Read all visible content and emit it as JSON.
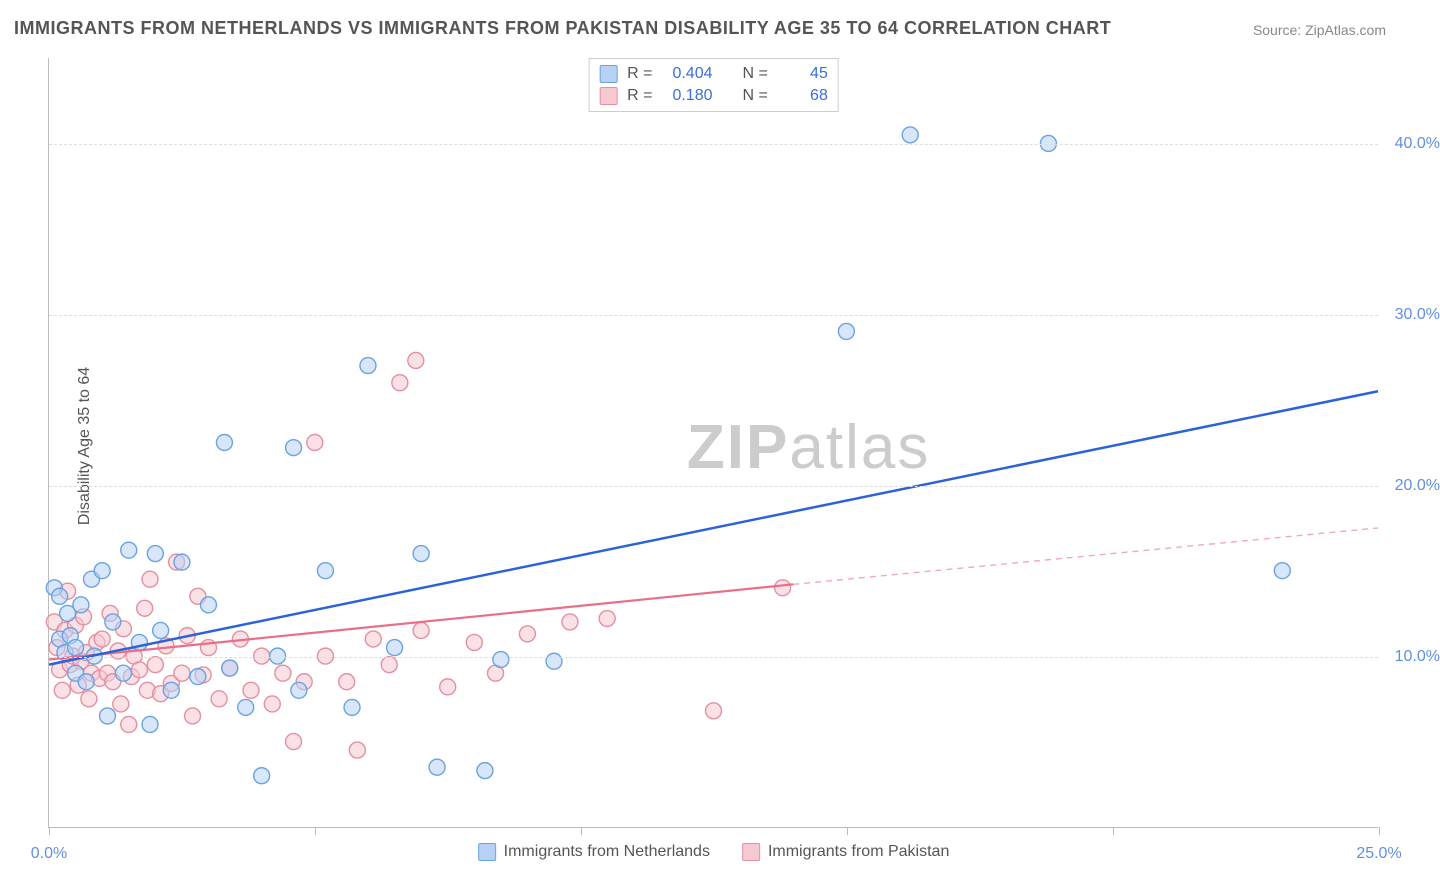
{
  "title": "IMMIGRANTS FROM NETHERLANDS VS IMMIGRANTS FROM PAKISTAN DISABILITY AGE 35 TO 64 CORRELATION CHART",
  "source": "Source: ZipAtlas.com",
  "y_axis_label": "Disability Age 35 to 64",
  "watermark_a": "ZIP",
  "watermark_b": "atlas",
  "chart": {
    "type": "scatter",
    "xlim": [
      0,
      25
    ],
    "ylim": [
      0,
      45
    ],
    "x_ticks": [
      0,
      5,
      10,
      15,
      20,
      25
    ],
    "x_tick_labels": {
      "0": "0.0%",
      "25": "25.0%"
    },
    "y_ticks": [
      10,
      20,
      30,
      40
    ],
    "y_tick_labels": [
      "10.0%",
      "20.0%",
      "30.0%",
      "40.0%"
    ],
    "grid_color": "#dddddd",
    "background_color": "#ffffff",
    "axis_color": "#bbbbbb",
    "tick_label_color": "#6090e0",
    "marker_radius": 8,
    "marker_stroke_width": 1.4,
    "series": [
      {
        "name": "Immigrants from Netherlands",
        "fill": "#b7d1f4",
        "stroke": "#6aa2e2",
        "fill_opacity": 0.55,
        "R": "0.404",
        "N": "45",
        "trend": {
          "x1": 0,
          "y1": 9.5,
          "x2": 25,
          "y2": 25.5,
          "stroke": "#2b62d9",
          "width": 2.5,
          "dash": null
        },
        "points": [
          [
            0.1,
            14.0
          ],
          [
            0.2,
            11.0
          ],
          [
            0.2,
            13.5
          ],
          [
            0.3,
            10.2
          ],
          [
            0.35,
            12.5
          ],
          [
            0.4,
            11.2
          ],
          [
            0.5,
            9.0
          ],
          [
            0.5,
            10.5
          ],
          [
            0.6,
            13.0
          ],
          [
            0.7,
            8.5
          ],
          [
            0.8,
            14.5
          ],
          [
            0.85,
            10.0
          ],
          [
            1.0,
            15.0
          ],
          [
            1.1,
            6.5
          ],
          [
            1.2,
            12.0
          ],
          [
            1.4,
            9.0
          ],
          [
            1.5,
            16.2
          ],
          [
            1.7,
            10.8
          ],
          [
            1.9,
            6.0
          ],
          [
            2.0,
            16.0
          ],
          [
            2.1,
            11.5
          ],
          [
            2.3,
            8.0
          ],
          [
            2.5,
            15.5
          ],
          [
            2.8,
            8.8
          ],
          [
            3.0,
            13.0
          ],
          [
            3.3,
            22.5
          ],
          [
            3.4,
            9.3
          ],
          [
            3.7,
            7.0
          ],
          [
            4.0,
            3.0
          ],
          [
            4.3,
            10.0
          ],
          [
            4.6,
            22.2
          ],
          [
            4.7,
            8.0
          ],
          [
            5.2,
            15.0
          ],
          [
            5.7,
            7.0
          ],
          [
            6.0,
            27.0
          ],
          [
            6.5,
            10.5
          ],
          [
            7.0,
            16.0
          ],
          [
            7.3,
            3.5
          ],
          [
            8.2,
            3.3
          ],
          [
            8.5,
            9.8
          ],
          [
            9.5,
            9.7
          ],
          [
            15.0,
            29.0
          ],
          [
            16.2,
            40.5
          ],
          [
            18.8,
            40.0
          ],
          [
            23.2,
            15.0
          ]
        ]
      },
      {
        "name": "Immigrants from Pakistan",
        "fill": "#f6c8d1",
        "stroke": "#e58fa0",
        "fill_opacity": 0.55,
        "R": "0.180",
        "N": "68",
        "trend": {
          "x1": 0,
          "y1": 9.8,
          "x2": 14,
          "y2": 14.2,
          "stroke": "#e86f89",
          "width": 2.2,
          "dash": null
        },
        "trend_extend": {
          "x1": 14,
          "y1": 14.2,
          "x2": 25,
          "y2": 17.5,
          "stroke": "#f2a9b7",
          "width": 1.4,
          "dash": "6 5"
        },
        "points": [
          [
            0.1,
            12.0
          ],
          [
            0.15,
            10.5
          ],
          [
            0.2,
            9.2
          ],
          [
            0.25,
            8.0
          ],
          [
            0.3,
            11.5
          ],
          [
            0.35,
            13.8
          ],
          [
            0.4,
            9.5
          ],
          [
            0.45,
            10.0
          ],
          [
            0.5,
            11.8
          ],
          [
            0.55,
            8.3
          ],
          [
            0.6,
            9.7
          ],
          [
            0.65,
            12.3
          ],
          [
            0.7,
            10.2
          ],
          [
            0.75,
            7.5
          ],
          [
            0.8,
            9.0
          ],
          [
            0.9,
            10.8
          ],
          [
            0.95,
            8.7
          ],
          [
            1.0,
            11.0
          ],
          [
            1.1,
            9.0
          ],
          [
            1.15,
            12.5
          ],
          [
            1.2,
            8.5
          ],
          [
            1.3,
            10.3
          ],
          [
            1.35,
            7.2
          ],
          [
            1.4,
            11.6
          ],
          [
            1.5,
            6.0
          ],
          [
            1.55,
            8.8
          ],
          [
            1.6,
            10.0
          ],
          [
            1.7,
            9.2
          ],
          [
            1.8,
            12.8
          ],
          [
            1.85,
            8.0
          ],
          [
            1.9,
            14.5
          ],
          [
            2.0,
            9.5
          ],
          [
            2.1,
            7.8
          ],
          [
            2.2,
            10.6
          ],
          [
            2.3,
            8.4
          ],
          [
            2.4,
            15.5
          ],
          [
            2.5,
            9.0
          ],
          [
            2.6,
            11.2
          ],
          [
            2.7,
            6.5
          ],
          [
            2.8,
            13.5
          ],
          [
            2.9,
            8.9
          ],
          [
            3.0,
            10.5
          ],
          [
            3.2,
            7.5
          ],
          [
            3.4,
            9.3
          ],
          [
            3.6,
            11.0
          ],
          [
            3.8,
            8.0
          ],
          [
            4.0,
            10.0
          ],
          [
            4.2,
            7.2
          ],
          [
            4.4,
            9.0
          ],
          [
            4.6,
            5.0
          ],
          [
            4.8,
            8.5
          ],
          [
            5.0,
            22.5
          ],
          [
            5.2,
            10.0
          ],
          [
            5.6,
            8.5
          ],
          [
            5.8,
            4.5
          ],
          [
            6.1,
            11.0
          ],
          [
            6.4,
            9.5
          ],
          [
            6.6,
            26.0
          ],
          [
            6.9,
            27.3
          ],
          [
            7.0,
            11.5
          ],
          [
            7.5,
            8.2
          ],
          [
            8.0,
            10.8
          ],
          [
            8.4,
            9.0
          ],
          [
            9.0,
            11.3
          ],
          [
            9.8,
            12.0
          ],
          [
            10.5,
            12.2
          ],
          [
            12.5,
            6.8
          ],
          [
            13.8,
            14.0
          ]
        ]
      }
    ]
  },
  "legend_top": {
    "r_label": "R =",
    "n_label": "N ="
  },
  "legend_bottom": {
    "series1": "Immigrants from Netherlands",
    "series2": "Immigrants from Pakistan"
  }
}
